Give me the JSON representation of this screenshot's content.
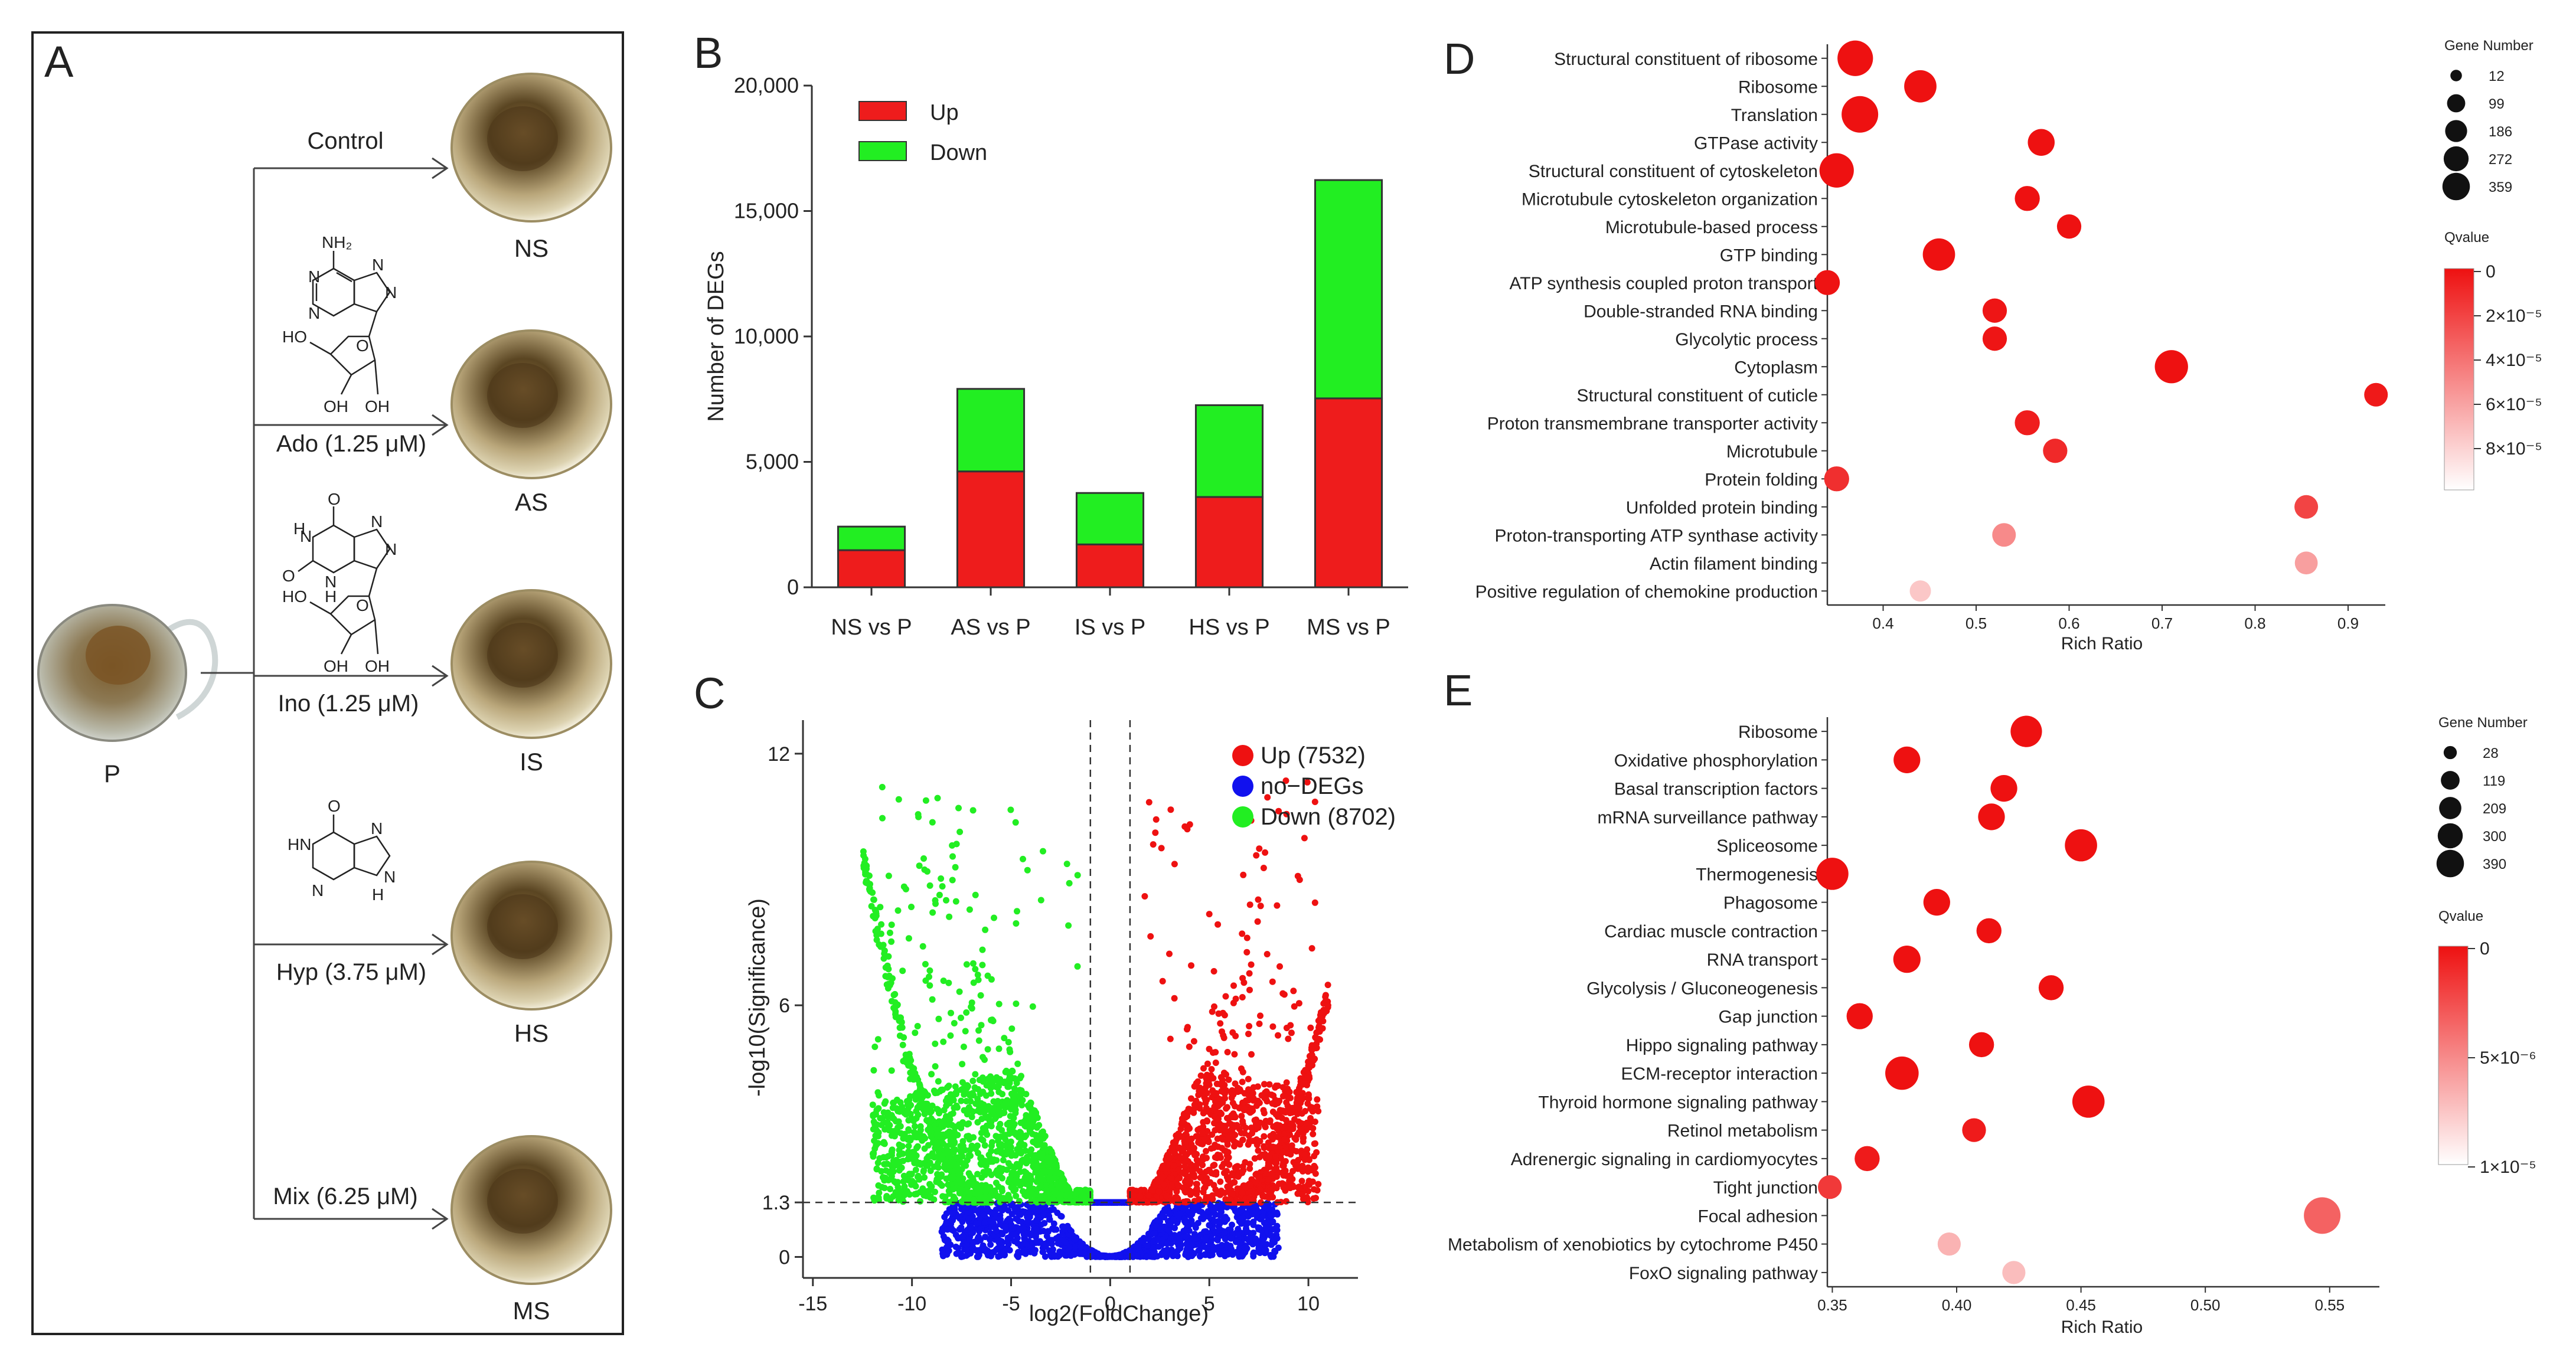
{
  "figure": {
    "panel_labels": [
      "A",
      "B",
      "C",
      "D",
      "E"
    ]
  },
  "panel_a": {
    "source_label": "P",
    "treatments": [
      {
        "condition": "Control",
        "group": "NS",
        "molecule": ""
      },
      {
        "condition": "Ado (1.25 μM)",
        "group": "AS",
        "molecule": "adenosine",
        "atoms": [
          "NH₂",
          "N",
          "N",
          "N",
          "N",
          "O",
          "HO",
          "OH",
          "OH"
        ]
      },
      {
        "condition": "Ino (1.25 μM)",
        "group": "IS",
        "molecule": "inosine",
        "atoms": [
          "O",
          "N",
          "N",
          "H",
          "O",
          "N",
          "H",
          "N",
          "O",
          "HO",
          "OH",
          "OH"
        ]
      },
      {
        "condition": "Hyp (3.75 μM)",
        "group": "HS",
        "molecule": "hypoxanthine",
        "atoms": [
          "O",
          "HN",
          "N",
          "N",
          "N",
          "H"
        ]
      },
      {
        "condition": "Mix (6.25 μM)",
        "group": "MS",
        "molecule": ""
      }
    ]
  },
  "chart_data": [
    {
      "panel": "B",
      "type": "bar",
      "stacked": true,
      "title": "",
      "xlabel": "",
      "ylabel": "Number of DEGs",
      "ylim": [
        0,
        20000
      ],
      "yticks": [
        0,
        5000,
        10000,
        15000,
        20000
      ],
      "ytick_labels": [
        "0",
        "5,000",
        "10,000",
        "15,000",
        "20,000"
      ],
      "categories": [
        "NS vs P",
        "AS vs P",
        "IS vs P",
        "HS vs P",
        "MS vs P"
      ],
      "series": [
        {
          "name": "Up",
          "color": "#ee1c1c",
          "values": [
            1480,
            4620,
            1710,
            3600,
            7532
          ]
        },
        {
          "name": "Down",
          "color": "#22ee22",
          "values": [
            940,
            3290,
            2050,
            3660,
            8702
          ]
        }
      ],
      "legend": {
        "position": "top-left",
        "entries": [
          "Up",
          "Down"
        ]
      }
    },
    {
      "panel": "C",
      "type": "scatter",
      "title": "",
      "xlabel": "log2(FoldChange)",
      "ylabel": "-log10(Significance)",
      "xlim": [
        -15.5,
        12.5
      ],
      "ylim": [
        -0.5,
        12.8
      ],
      "xticks": [
        -15,
        -10,
        -5,
        0,
        5,
        10
      ],
      "yticks": [
        0,
        1.3,
        6,
        12
      ],
      "ytick_labels": [
        "0",
        "1.3",
        "6",
        "12"
      ],
      "threshold_lines": {
        "y": 1.3,
        "x": [
          -1,
          1
        ]
      },
      "series": [
        {
          "name": "Up (7532)",
          "color": "#ee1111",
          "count": 7532
        },
        {
          "name": "no−DEGs",
          "color": "#1111ee"
        },
        {
          "name": "Down (8702)",
          "color": "#22ee22",
          "count": 8702
        }
      ],
      "legend": {
        "position": "top-right",
        "entries": [
          "Up (7532)",
          "no−DEGs",
          "Down (8702)"
        ]
      }
    },
    {
      "panel": "D",
      "type": "scatter",
      "subtype": "bubble",
      "title": "",
      "xlabel": "Rich Ratio",
      "ylabel": "",
      "xlim": [
        0.34,
        0.94
      ],
      "xticks": [
        0.4,
        0.5,
        0.6,
        0.7,
        0.8,
        0.9
      ],
      "xtick_labels": [
        "0.4",
        "0.5",
        "0.6",
        "0.7",
        "0.8",
        "0.9"
      ],
      "terms": [
        {
          "term": "Structural constituent of ribosome",
          "rich_ratio": 0.37,
          "gene_number": 330,
          "qvalue": 0
        },
        {
          "term": "Ribosome",
          "rich_ratio": 0.44,
          "gene_number": 250,
          "qvalue": 0
        },
        {
          "term": "Translation",
          "rich_ratio": 0.375,
          "gene_number": 359,
          "qvalue": 0
        },
        {
          "term": "GTPase activity",
          "rich_ratio": 0.57,
          "gene_number": 140,
          "qvalue": 0
        },
        {
          "term": "Structural constituent of cytoskeleton",
          "rich_ratio": 0.35,
          "gene_number": 300,
          "qvalue": 0
        },
        {
          "term": "Microtubule cytoskeleton organization",
          "rich_ratio": 0.555,
          "gene_number": 110,
          "qvalue": 0
        },
        {
          "term": "Microtubule-based process",
          "rich_ratio": 0.6,
          "gene_number": 100,
          "qvalue": 0
        },
        {
          "term": "GTP binding",
          "rich_ratio": 0.46,
          "gene_number": 250,
          "qvalue": 0
        },
        {
          "term": "ATP synthesis coupled proton transport",
          "rich_ratio": 0.34,
          "gene_number": 110,
          "qvalue": 1e-06
        },
        {
          "term": "Double-stranded RNA binding",
          "rich_ratio": 0.52,
          "gene_number": 100,
          "qvalue": 2e-06
        },
        {
          "term": "Glycolytic process",
          "rich_ratio": 0.52,
          "gene_number": 100,
          "qvalue": 2e-06
        },
        {
          "term": "Cytoplasm",
          "rich_ratio": 0.71,
          "gene_number": 272,
          "qvalue": 0
        },
        {
          "term": "Structural constituent of cuticle",
          "rich_ratio": 0.93,
          "gene_number": 90,
          "qvalue": 4e-06
        },
        {
          "term": "Proton transmembrane transporter activity",
          "rich_ratio": 0.555,
          "gene_number": 110,
          "qvalue": 6e-06
        },
        {
          "term": "Microtubule",
          "rich_ratio": 0.585,
          "gene_number": 100,
          "qvalue": 1.2e-05
        },
        {
          "term": "Protein folding",
          "rich_ratio": 0.35,
          "gene_number": 110,
          "qvalue": 1.5e-05
        },
        {
          "term": "Unfolded protein binding",
          "rich_ratio": 0.855,
          "gene_number": 90,
          "qvalue": 2.5e-05
        },
        {
          "term": "Proton-transporting ATP synthase activity",
          "rich_ratio": 0.53,
          "gene_number": 90,
          "qvalue": 6e-05
        },
        {
          "term": "Actin filament binding",
          "rich_ratio": 0.855,
          "gene_number": 80,
          "qvalue": 7e-05
        },
        {
          "term": "Positive regulation of chemokine production",
          "rich_ratio": 0.44,
          "gene_number": 60,
          "qvalue": 9e-05
        }
      ],
      "size_legend": {
        "title": "Gene Number",
        "values": [
          12,
          99,
          186,
          272,
          359
        ]
      },
      "color_legend": {
        "title": "Qvalue",
        "labels": [
          "0",
          "2×10⁻⁵",
          "4×10⁻⁵",
          "6×10⁻⁵",
          "8×10⁻⁵"
        ],
        "range": [
          0,
          0.0001
        ],
        "colors": [
          "#ee1111",
          "#ffffff"
        ]
      }
    },
    {
      "panel": "E",
      "type": "scatter",
      "subtype": "bubble",
      "title": "",
      "xlabel": "Rich Ratio",
      "ylabel": "",
      "xlim": [
        0.348,
        0.57
      ],
      "xticks": [
        0.35,
        0.4,
        0.45,
        0.5,
        0.55
      ],
      "xtick_labels": [
        "0.35",
        "0.40",
        "0.45",
        "0.50",
        "0.55"
      ],
      "terms": [
        {
          "term": "Ribosome",
          "rich_ratio": 0.428,
          "gene_number": 250,
          "qvalue": 0
        },
        {
          "term": "Oxidative phosphorylation",
          "rich_ratio": 0.38,
          "gene_number": 150,
          "qvalue": 0
        },
        {
          "term": "Basal transcription factors",
          "rich_ratio": 0.419,
          "gene_number": 150,
          "qvalue": 0
        },
        {
          "term": "mRNA surveillance pathway",
          "rich_ratio": 0.414,
          "gene_number": 150,
          "qvalue": 0
        },
        {
          "term": "Spliceosome",
          "rich_ratio": 0.45,
          "gene_number": 270,
          "qvalue": 0
        },
        {
          "term": "Thermogenesis",
          "rich_ratio": 0.35,
          "gene_number": 270,
          "qvalue": 0
        },
        {
          "term": "Phagosome",
          "rich_ratio": 0.392,
          "gene_number": 150,
          "qvalue": 0
        },
        {
          "term": "Cardiac muscle contraction",
          "rich_ratio": 0.413,
          "gene_number": 120,
          "qvalue": 0
        },
        {
          "term": "RNA transport",
          "rich_ratio": 0.38,
          "gene_number": 160,
          "qvalue": 0
        },
        {
          "term": "Glycolysis / Gluconeogenesis",
          "rich_ratio": 0.438,
          "gene_number": 120,
          "qvalue": 0
        },
        {
          "term": "Gap junction",
          "rich_ratio": 0.361,
          "gene_number": 140,
          "qvalue": 0
        },
        {
          "term": "Hippo signaling pathway",
          "rich_ratio": 0.41,
          "gene_number": 120,
          "qvalue": 0
        },
        {
          "term": "ECM-receptor interaction",
          "rich_ratio": 0.378,
          "gene_number": 300,
          "qvalue": 0
        },
        {
          "term": "Thyroid hormone signaling pathway",
          "rich_ratio": 0.453,
          "gene_number": 270,
          "qvalue": 0
        },
        {
          "term": "Retinol metabolism",
          "rich_ratio": 0.407,
          "gene_number": 100,
          "qvalue": 5e-07
        },
        {
          "term": "Adrenergic signaling in cardiomyocytes",
          "rich_ratio": 0.364,
          "gene_number": 120,
          "qvalue": 5e-07
        },
        {
          "term": "Tight junction",
          "rich_ratio": 0.349,
          "gene_number": 100,
          "qvalue": 2e-06
        },
        {
          "term": "Focal adhesion",
          "rich_ratio": 0.547,
          "gene_number": 390,
          "qvalue": 4e-06
        },
        {
          "term": "Metabolism of xenobiotics by cytochrome P450",
          "rich_ratio": 0.397,
          "gene_number": 90,
          "qvalue": 8e-06
        },
        {
          "term": "FoxO signaling pathway",
          "rich_ratio": 0.423,
          "gene_number": 90,
          "qvalue": 8.5e-06
        }
      ],
      "size_legend": {
        "title": "Gene Number",
        "values": [
          28,
          119,
          209,
          300,
          390
        ]
      },
      "color_legend": {
        "title": "Qvalue",
        "labels": [
          "0",
          "5×10⁻⁶",
          "1×10⁻⁵"
        ],
        "range": [
          0,
          1e-05
        ],
        "colors": [
          "#ee1111",
          "#ffffff"
        ]
      }
    }
  ]
}
